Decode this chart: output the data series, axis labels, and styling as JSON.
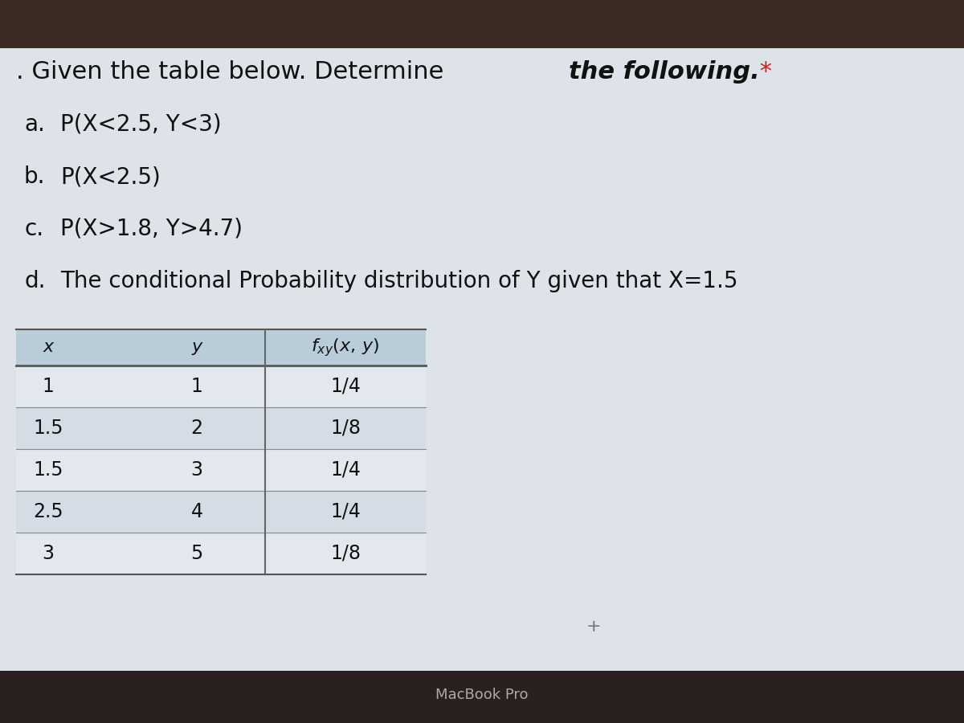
{
  "bg_dark": "#2a2020",
  "bg_light": "#dde3e8",
  "bg_top_bar": "#3a2a22",
  "title_normal": ". Given the table below. Determine ",
  "title_bold": "the following.",
  "title_asterisk": " *",
  "items": [
    [
      "a.",
      "  P(X<2.5, Y<3)"
    ],
    [
      "b.",
      "  P(X<2.5)"
    ],
    [
      "c.",
      "  P(X>1.8, Y>4.7)"
    ],
    [
      "d.",
      "  The conditional Probability distribution of Y given that X=1.5"
    ]
  ],
  "table_header_bg": "#b8cdd8",
  "table_row_bg1": "#e2e8ee",
  "table_row_bg2": "#d4dde5",
  "table_data": [
    [
      "1",
      "1",
      "1/4"
    ],
    [
      "1.5",
      "2",
      "1/8"
    ],
    [
      "1.5",
      "3",
      "1/4"
    ],
    [
      "2.5",
      "4",
      "1/4"
    ],
    [
      "3",
      "5",
      "1/8"
    ]
  ],
  "macbook_text": "MacBook Pro",
  "plus_sign": "+"
}
